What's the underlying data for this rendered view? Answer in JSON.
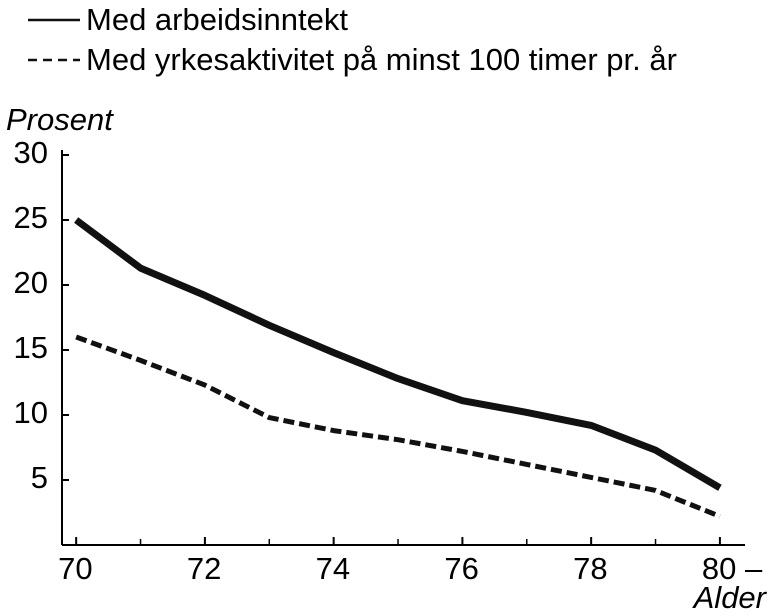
{
  "chart_data": {
    "type": "line",
    "y_label": "Prosent",
    "x_label": "Alder",
    "x": [
      70,
      71,
      72,
      73,
      74,
      75,
      76,
      77,
      78,
      79,
      80
    ],
    "series": [
      {
        "name": "Med arbeidsinntekt",
        "color": "#111111",
        "dash": "solid",
        "values": [
          25,
          21.3,
          19.2,
          16.9,
          14.8,
          12.8,
          11.1,
          10.2,
          9.2,
          7.3,
          4.4
        ]
      },
      {
        "name": "Med yrkesaktivitet på minst 100 timer pr. år",
        "color": "#111111",
        "dash": "dashed",
        "values": [
          16,
          14.2,
          12.3,
          9.8,
          8.8,
          8.1,
          7.2,
          6.2,
          5.2,
          4.2,
          2.2
        ]
      }
    ],
    "xlim": [
      69.78,
      80.39
    ],
    "xticks": [
      70,
      72,
      74,
      76,
      78,
      {
        "value": 80,
        "label": "80 –"
      }
    ],
    "xminorticks": [
      71,
      73,
      75,
      77,
      79
    ],
    "ylim": [
      0,
      30
    ],
    "yticks": [
      5,
      10,
      15,
      20,
      25,
      30
    ],
    "grid": false,
    "legend": "top-left"
  }
}
